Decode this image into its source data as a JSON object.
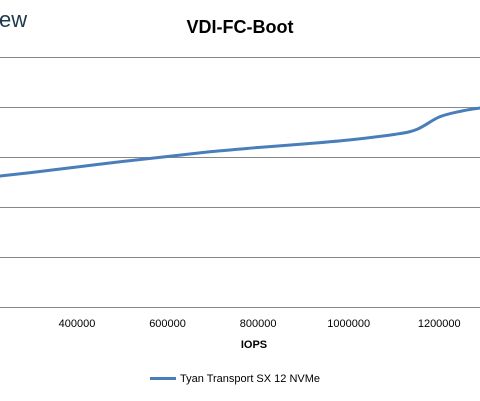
{
  "brand_text": "ew",
  "chart_data": {
    "type": "line",
    "title": "VDI-FC-Boot",
    "xlabel": "IOPS",
    "ylabel": "",
    "xlim": [
      230000,
      1290000
    ],
    "x_ticks": [
      400000,
      600000,
      800000,
      1000000,
      1200000
    ],
    "x_tick_labels": [
      "400000",
      "600000",
      "800000",
      "1000000",
      "1200000"
    ],
    "ylim": [
      0,
      5
    ],
    "y_gridlines": [
      0,
      1,
      2,
      3,
      4,
      5
    ],
    "grid": true,
    "legend_position": "bottom",
    "series": [
      {
        "name": "Tyan Transport SX 12 NVMe",
        "color": "#4a7ebb",
        "x": [
          230000,
          300000,
          400000,
          500000,
          600000,
          700000,
          800000,
          900000,
          1000000,
          1100000,
          1150000,
          1200000,
          1250000,
          1290000
        ],
        "y": [
          2.62,
          2.69,
          2.8,
          2.91,
          3.01,
          3.11,
          3.19,
          3.26,
          3.34,
          3.45,
          3.55,
          3.8,
          3.92,
          3.98
        ]
      }
    ]
  }
}
